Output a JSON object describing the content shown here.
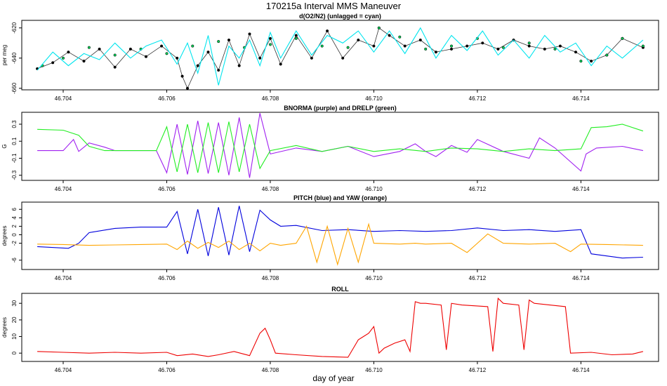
{
  "figure": {
    "title": "170215a   Interval MMS Maneuver",
    "xlabel": "day of year"
  },
  "chart_data": [
    {
      "type": "line",
      "title": "d(O2/N2) (unlagged = cyan)",
      "ylabel": "per meg",
      "xlim": [
        46.7032,
        46.7155
      ],
      "ylim": [
        -661,
        -615
      ],
      "xticks": [
        46.704,
        46.706,
        46.708,
        46.71,
        46.712,
        46.714
      ],
      "xticklabels": [
        "46.704",
        "46.706",
        "46.708",
        "46.710",
        "46.712",
        "46.714"
      ],
      "yticks": [
        -660,
        -640,
        -620
      ],
      "yticklabels": [
        "-660",
        "-640",
        "-620"
      ],
      "series": [
        {
          "color": "#000000",
          "marker": "dots",
          "x": [
            46.7035,
            46.7038,
            46.7041,
            46.7044,
            46.7047,
            46.705,
            46.7053,
            46.7056,
            46.7059,
            46.7062,
            46.7063,
            46.7064,
            46.7066,
            46.7068,
            46.707,
            46.7072,
            46.7074,
            46.7076,
            46.7078,
            46.708,
            46.7082,
            46.7085,
            46.7088,
            46.7091,
            46.7094,
            46.7097,
            46.71,
            46.7101,
            46.7103,
            46.7106,
            46.7109,
            46.7112,
            46.7115,
            46.7118,
            46.7121,
            46.7124,
            46.7127,
            46.713,
            46.7133,
            46.7136,
            46.7139,
            46.7142,
            46.7145,
            46.7148,
            46.7152
          ],
          "values": [
            -647,
            -643,
            -636,
            -642,
            -634,
            -646,
            -634,
            -639,
            -632,
            -640,
            -652,
            -660,
            -645,
            -636,
            -648,
            -628,
            -645,
            -624,
            -640,
            -627,
            -644,
            -625,
            -640,
            -622,
            -640,
            -628,
            -632,
            -620,
            -625,
            -632,
            -628,
            -636,
            -634,
            -632,
            -630,
            -634,
            -628,
            -632,
            -634,
            -632,
            -636,
            -642,
            -638,
            -627,
            -633
          ]
        },
        {
          "color": "#00c853",
          "marker": "dots",
          "x": [
            46.7036,
            46.704,
            46.7045,
            46.705,
            46.7055,
            46.706,
            46.7065,
            46.707,
            46.7075,
            46.708,
            46.7085,
            46.709,
            46.7095,
            46.7101,
            46.7105,
            46.711,
            46.7115,
            46.712,
            46.7125,
            46.713,
            46.7135,
            46.714,
            46.7145,
            46.7148,
            46.7152
          ],
          "values": [
            -645,
            -640,
            -633,
            -638,
            -634,
            -637,
            -632,
            -629,
            -633,
            -631,
            -627,
            -632,
            -633,
            -620,
            -626,
            -634,
            -632,
            -627,
            -633,
            -630,
            -634,
            -642,
            -638,
            -627,
            -632
          ]
        },
        {
          "color": "#00e5ee",
          "x": [
            46.7035,
            46.7038,
            46.7041,
            46.7044,
            46.7047,
            46.705,
            46.7053,
            46.7056,
            46.7059,
            46.7062,
            46.7064,
            46.7066,
            46.7068,
            46.707,
            46.7072,
            46.7074,
            46.7076,
            46.7078,
            46.708,
            46.7082,
            46.7085,
            46.7088,
            46.7091,
            46.7094,
            46.7097,
            46.71,
            46.7103,
            46.7106,
            46.7109,
            46.7112,
            46.7115,
            46.7118,
            46.7121,
            46.7124,
            46.7127,
            46.713,
            46.7133,
            46.7136,
            46.7139,
            46.7142,
            46.7145,
            46.7148,
            46.7152
          ],
          "values": [
            -648,
            -636,
            -645,
            -637,
            -641,
            -630,
            -640,
            -632,
            -628,
            -644,
            -630,
            -650,
            -625,
            -658,
            -632,
            -640,
            -628,
            -645,
            -623,
            -640,
            -622,
            -638,
            -625,
            -630,
            -622,
            -636,
            -622,
            -637,
            -620,
            -640,
            -625,
            -635,
            -622,
            -638,
            -628,
            -640,
            -625,
            -636,
            -630,
            -645,
            -632,
            -640,
            -628
          ]
        }
      ]
    },
    {
      "type": "line",
      "title": "BNORMA (purple) and DRELP (green)",
      "ylabel": "G",
      "xlim": [
        46.7032,
        46.7155
      ],
      "ylim": [
        -0.36,
        0.44
      ],
      "xticks": [
        46.704,
        46.706,
        46.708,
        46.71,
        46.712,
        46.714
      ],
      "xticklabels": [
        "46.704",
        "46.706",
        "46.708",
        "46.710",
        "46.712",
        "46.714"
      ],
      "yticks": [
        -0.3,
        -0.1,
        0.1,
        0.3
      ],
      "yticklabels": [
        "-0.3",
        "-0.1",
        "0.1",
        "0.3"
      ],
      "series": [
        {
          "color": "#a020f0",
          "x": [
            46.7035,
            46.704,
            46.7042,
            46.7043,
            46.7045,
            46.7048,
            46.705,
            46.7055,
            46.7058,
            46.706,
            46.7062,
            46.7064,
            46.7066,
            46.7068,
            46.707,
            46.7072,
            46.7074,
            46.7076,
            46.7078,
            46.708,
            46.7085,
            46.709,
            46.7095,
            46.71,
            46.7105,
            46.7108,
            46.711,
            46.7112,
            46.7115,
            46.7118,
            46.712,
            46.7125,
            46.713,
            46.7132,
            46.7135,
            46.714,
            46.7141,
            46.7143,
            46.7148,
            46.7152
          ],
          "values": [
            -0.01,
            -0.01,
            0.12,
            -0.02,
            0.08,
            0.03,
            -0.01,
            -0.01,
            -0.01,
            -0.27,
            0.3,
            -0.29,
            0.34,
            -0.28,
            0.32,
            -0.3,
            0.38,
            -0.33,
            0.43,
            -0.05,
            0.02,
            -0.02,
            0.04,
            -0.08,
            -0.02,
            0.07,
            -0.02,
            -0.08,
            0.05,
            -0.03,
            0.12,
            -0.02,
            -0.1,
            0.14,
            0.02,
            -0.25,
            -0.05,
            0.02,
            0.04,
            -0.01
          ]
        },
        {
          "color": "#22ee22",
          "x": [
            46.7035,
            46.704,
            46.7043,
            46.7045,
            46.7048,
            46.705,
            46.7055,
            46.7058,
            46.706,
            46.7062,
            46.7064,
            46.7066,
            46.7068,
            46.707,
            46.7072,
            46.7074,
            46.7076,
            46.7078,
            46.708,
            46.7085,
            46.709,
            46.7095,
            46.71,
            46.7105,
            46.711,
            46.7115,
            46.712,
            46.7125,
            46.713,
            46.7135,
            46.714,
            46.7142,
            46.7145,
            46.7148,
            46.7152
          ],
          "values": [
            0.24,
            0.23,
            0.17,
            0.04,
            -0.01,
            -0.01,
            -0.01,
            -0.01,
            0.27,
            -0.26,
            0.3,
            -0.27,
            0.32,
            -0.27,
            0.33,
            -0.26,
            0.3,
            -0.22,
            -0.01,
            0.05,
            -0.02,
            0.04,
            -0.02,
            0.01,
            -0.02,
            0.02,
            0.01,
            -0.02,
            0.01,
            -0.01,
            0.01,
            0.26,
            0.27,
            0.3,
            0.22
          ]
        }
      ]
    },
    {
      "type": "line",
      "title": "PITCH (blue) and YAW (orange)",
      "ylabel": "degrees",
      "xlim": [
        46.7032,
        46.7155
      ],
      "ylim": [
        -8.2,
        7.7
      ],
      "xticks": [
        46.704,
        46.706,
        46.708,
        46.71,
        46.712,
        46.714
      ],
      "xticklabels": [
        "46.704",
        "46.706",
        "46.708",
        "46.710",
        "46.712",
        "46.714"
      ],
      "yticks": [
        -6,
        -2,
        0,
        2,
        4,
        6
      ],
      "yticklabels": [
        "-6",
        "-2",
        "0",
        "2",
        "4",
        "6"
      ],
      "series": [
        {
          "color": "#0000dd",
          "x": [
            46.7035,
            46.7041,
            46.7043,
            46.7045,
            46.705,
            46.7055,
            46.706,
            46.7062,
            46.7064,
            46.7066,
            46.7068,
            46.707,
            46.7072,
            46.7074,
            46.7076,
            46.7078,
            46.708,
            46.7082,
            46.7085,
            46.709,
            46.7095,
            46.71,
            46.7105,
            46.711,
            46.7115,
            46.712,
            46.7125,
            46.713,
            46.7135,
            46.714,
            46.7142,
            46.7148,
            46.7152
          ],
          "values": [
            -2.8,
            -3.2,
            -2.0,
            0.5,
            1.5,
            1.8,
            1.8,
            5.5,
            -4.5,
            6.0,
            -5.0,
            6.5,
            -4.8,
            6.8,
            -4.0,
            5.8,
            3.5,
            2.0,
            2.2,
            1.0,
            1.2,
            0.8,
            1.0,
            0.8,
            1.0,
            1.6,
            1.0,
            1.2,
            0.8,
            1.2,
            -4.5,
            -5.5,
            -5.3
          ]
        },
        {
          "color": "#ffa500",
          "x": [
            46.7035,
            46.704,
            46.7045,
            46.705,
            46.7055,
            46.706,
            46.7062,
            46.7064,
            46.7066,
            46.7068,
            46.707,
            46.7072,
            46.7074,
            46.7076,
            46.7078,
            46.708,
            46.7082,
            46.7085,
            46.7087,
            46.7089,
            46.7091,
            46.7093,
            46.7095,
            46.7097,
            46.7099,
            46.71,
            46.7105,
            46.7108,
            46.711,
            46.7115,
            46.7118,
            46.712,
            46.7122,
            46.7125,
            46.713,
            46.7135,
            46.7138,
            46.714,
            46.7145,
            46.7152
          ],
          "values": [
            -2.2,
            -2.3,
            -2.5,
            -2.4,
            -2.3,
            -2.2,
            -3.5,
            -1.5,
            -3.2,
            -1.8,
            -3.0,
            -1.5,
            -3.5,
            -2.0,
            -3.8,
            -2.0,
            -2.5,
            -2.0,
            2.0,
            -6.5,
            2.0,
            -7.0,
            1.5,
            -6.5,
            2.5,
            -2.0,
            -2.2,
            -2.0,
            -2.2,
            -2.0,
            -4.2,
            -2.0,
            0.2,
            -2.0,
            -2.2,
            -2.0,
            -4.0,
            -2.2,
            -2.3,
            -2.5
          ]
        }
      ]
    },
    {
      "type": "line",
      "title": "ROLL",
      "ylabel": "degrees",
      "xlim": [
        46.7032,
        46.7155
      ],
      "ylim": [
        -5,
        36
      ],
      "xticks": [
        46.704,
        46.706,
        46.708,
        46.71,
        46.712,
        46.714
      ],
      "xticklabels": [
        "46.704",
        "46.706",
        "46.708",
        "46.710",
        "46.712",
        "46.714"
      ],
      "yticks": [
        0,
        10,
        20,
        30
      ],
      "yticklabels": [
        "0",
        "10",
        "20",
        "30"
      ],
      "series": [
        {
          "color": "#ee0000",
          "x": [
            46.7035,
            46.704,
            46.7045,
            46.705,
            46.7055,
            46.706,
            46.7062,
            46.7065,
            46.7068,
            46.707,
            46.7073,
            46.7076,
            46.7078,
            46.7079,
            46.708,
            46.7081,
            46.7085,
            46.709,
            46.7095,
            46.7097,
            46.7098,
            46.7099,
            46.71,
            46.7101,
            46.7102,
            46.7104,
            46.7106,
            46.7107,
            46.7108,
            46.7109,
            46.711,
            46.7113,
            46.7114,
            46.7115,
            46.7117,
            46.7122,
            46.7123,
            46.7124,
            46.7125,
            46.7128,
            46.7129,
            46.713,
            46.7131,
            46.7134,
            46.7137,
            46.7138,
            46.7142,
            46.7146,
            46.715,
            46.7152
          ],
          "values": [
            1,
            0.5,
            0,
            0.5,
            0,
            0.5,
            -1.5,
            -0.5,
            -2.0,
            -1.0,
            1.0,
            -1.5,
            12,
            15,
            8,
            0,
            -1,
            -2,
            -2.5,
            8,
            10,
            12,
            16,
            0,
            3,
            6,
            8,
            1,
            31,
            30,
            30,
            29,
            2,
            30,
            29,
            28,
            1,
            33,
            30,
            29,
            2,
            32,
            30,
            29,
            28,
            0,
            0.5,
            -1,
            -0.5,
            1
          ]
        }
      ]
    }
  ]
}
